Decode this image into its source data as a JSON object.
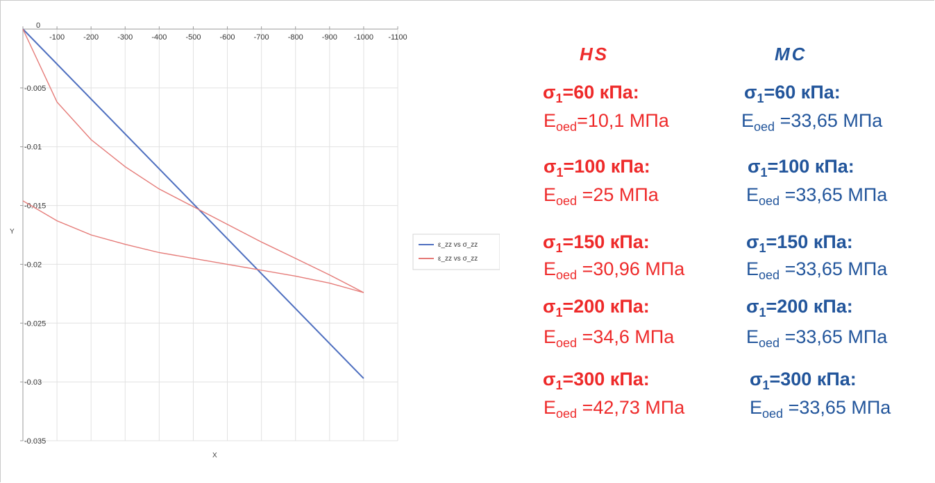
{
  "chart_data": {
    "type": "line",
    "xlabel": "X",
    "ylabel": "Y",
    "xlim": [
      0,
      -1100
    ],
    "ylim": [
      0,
      -0.035
    ],
    "x_ticks": [
      "0",
      "-100",
      "-200",
      "-300",
      "-400",
      "-500",
      "-600",
      "-700",
      "-800",
      "-900",
      "-1000",
      "-1100"
    ],
    "y_ticks": [
      "-0.005",
      "-0.01",
      "-0.015",
      "-0.02",
      "-0.025",
      "-0.03",
      "-0.035"
    ],
    "series": [
      {
        "name": "ε_zz vs σ_zz",
        "color": "#4d6ebf",
        "x": [
          0,
          -1000
        ],
        "y": [
          0,
          -0.0297
        ]
      },
      {
        "name": "ε_zz vs σ_zz",
        "color": "#e57a77",
        "x": [
          0,
          -100,
          -200,
          -300,
          -400,
          -500,
          -600,
          -700,
          -800,
          -900,
          -1000
        ],
        "y": [
          0,
          -0.0062,
          -0.0094,
          -0.0117,
          -0.0136,
          -0.0151,
          -0.0166,
          -0.0181,
          -0.0195,
          -0.0209,
          -0.0224
        ]
      },
      {
        "name": "",
        "color": "#e57a77",
        "x": [
          0,
          -100,
          -200,
          -300,
          -400,
          -500,
          -600,
          -700,
          -800,
          -900,
          -1000
        ],
        "y": [
          -0.0146,
          -0.0163,
          -0.0175,
          -0.0183,
          -0.019,
          -0.0195,
          -0.02,
          -0.0205,
          -0.021,
          -0.0216,
          -0.0224
        ]
      }
    ],
    "legend_position": "right"
  },
  "columns": {
    "hs": {
      "title": "HS",
      "entries": [
        {
          "sigma": "=60 кПа:",
          "eoed": "=10,1 МПа"
        },
        {
          "sigma": "=100 кПа:",
          "eoed": " =25 МПа"
        },
        {
          "sigma": "=150 кПа:",
          "eoed": " =30,96 МПа"
        },
        {
          "sigma": "=200 кПа:",
          "eoed": " =34,6 МПа"
        },
        {
          "sigma": "=300 кПа:",
          "eoed": " =42,73 МПа"
        }
      ]
    },
    "mc": {
      "title": "MC",
      "entries": [
        {
          "sigma": "=60 кПа:",
          "eoed": " =33,65 МПа"
        },
        {
          "sigma": "=100 кПа:",
          "eoed": " =33,65 МПа"
        },
        {
          "sigma": "=150 кПа:",
          "eoed": " =33,65 МПа"
        },
        {
          "sigma": "=200 кПа:",
          "eoed": " =33,65 МПа"
        },
        {
          "sigma": "=300 кПа:",
          "eoed": " =33,65 МПа"
        }
      ]
    },
    "sigma_symbol": "σ",
    "sigma_sub": "1",
    "e_symbol": "E",
    "e_sub": "oed"
  }
}
